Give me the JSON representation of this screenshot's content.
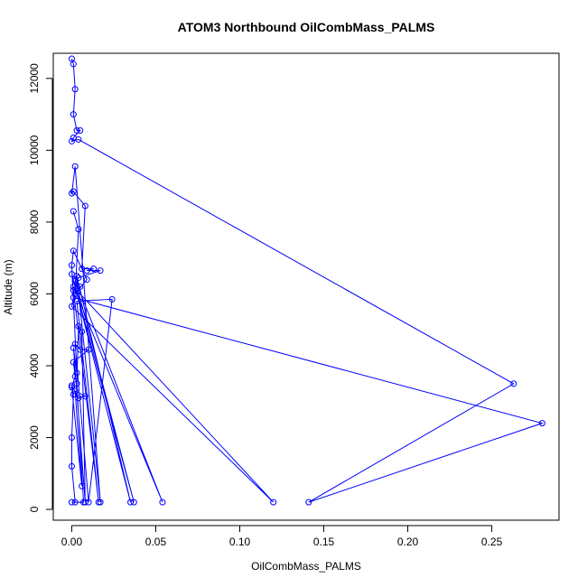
{
  "chart_data": {
    "type": "line",
    "title": "ATOM3 Northbound OilCombMass_PALMS",
    "xlabel": "OilCombMass_PALMS",
    "ylabel": "Altitude (m)",
    "xlim": [
      -0.011,
      0.29
    ],
    "ylim": [
      -300,
      12700
    ],
    "xticks": [
      0.0,
      0.05,
      0.1,
      0.15,
      0.2,
      0.25
    ],
    "xtick_labels": [
      "0.00",
      "0.05",
      "0.10",
      "0.15",
      "0.20",
      "0.25"
    ],
    "yticks": [
      0,
      2000,
      4000,
      6000,
      8000,
      10000,
      12000
    ],
    "ytick_labels": [
      "0",
      "2000",
      "4000",
      "6000",
      "8000",
      "10000",
      "12000"
    ],
    "grid": false,
    "series": [
      {
        "color": "#0000ff",
        "marker": "open-circle",
        "points": [
          [
            0.0,
            12550
          ],
          [
            0.001,
            12400
          ],
          [
            0.002,
            11700
          ],
          [
            0.001,
            11000
          ],
          [
            0.003,
            10550
          ],
          [
            0.005,
            10550
          ],
          [
            0.001,
            10350
          ],
          [
            0.0,
            10250
          ],
          [
            0.004,
            10300
          ],
          [
            0.263,
            3500
          ],
          [
            0.141,
            200
          ],
          [
            0.28,
            2400
          ],
          [
            0.001,
            5900
          ],
          [
            0.0,
            5650
          ],
          [
            0.12,
            200
          ],
          [
            0.001,
            6200
          ],
          [
            0.054,
            200
          ],
          [
            0.002,
            6400
          ],
          [
            0.037,
            200
          ],
          [
            0.0,
            6550
          ],
          [
            0.035,
            200
          ],
          [
            0.003,
            6500
          ],
          [
            0.017,
            200
          ],
          [
            0.002,
            9550
          ],
          [
            0.0,
            8800
          ],
          [
            0.001,
            8850
          ],
          [
            0.008,
            8450
          ],
          [
            0.006,
            6700
          ],
          [
            0.013,
            6700
          ],
          [
            0.009,
            6650
          ],
          [
            0.017,
            6650
          ],
          [
            0.004,
            6450
          ],
          [
            0.002,
            6350
          ],
          [
            0.005,
            6200
          ],
          [
            0.001,
            6100
          ],
          [
            0.016,
            200
          ],
          [
            0.003,
            5800
          ],
          [
            0.024,
            5850
          ],
          [
            0.01,
            200
          ],
          [
            0.002,
            4600
          ],
          [
            0.005,
            4450
          ],
          [
            0.01,
            4450
          ],
          [
            0.001,
            4100
          ],
          [
            0.002,
            3700
          ],
          [
            0.0,
            3400
          ],
          [
            0.006,
            650
          ],
          [
            0.002,
            3300
          ],
          [
            0.008,
            3150
          ],
          [
            0.004,
            3100
          ],
          [
            0.0,
            3450
          ],
          [
            0.001,
            3200
          ],
          [
            0.0,
            2000
          ],
          [
            0.0,
            1200
          ],
          [
            0.002,
            200
          ],
          [
            0.0,
            200
          ],
          [
            0.007,
            200
          ],
          [
            0.003,
            3500
          ],
          [
            0.004,
            5100
          ],
          [
            0.006,
            4950
          ],
          [
            0.008,
            200
          ],
          [
            0.001,
            4500
          ],
          [
            0.003,
            3800
          ],
          [
            0.0,
            6800
          ],
          [
            0.001,
            7200
          ],
          [
            0.009,
            6400
          ],
          [
            0.002,
            6000
          ],
          [
            0.004,
            7800
          ],
          [
            0.001,
            8300
          ]
        ]
      }
    ]
  }
}
